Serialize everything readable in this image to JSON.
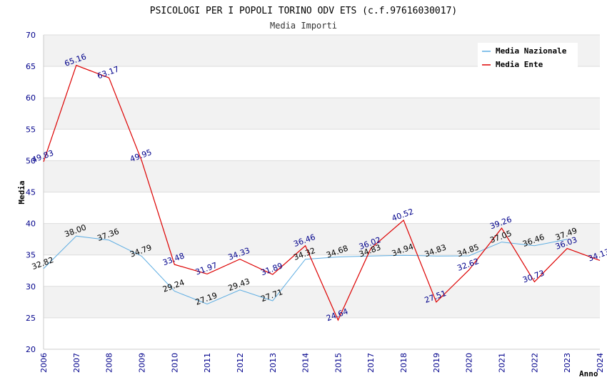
{
  "chart_data": {
    "type": "line",
    "title": "PSICOLOGI PER I POPOLI TORINO ODV ETS (c.f.97616030017)",
    "subtitle": "Media Importi",
    "ylabel": "Media",
    "xlabel": "Anno",
    "ylim": [
      20,
      70
    ],
    "yticks": [
      "20",
      "25",
      "30",
      "35",
      "40",
      "45",
      "50",
      "55",
      "60",
      "65",
      "70"
    ],
    "categories": [
      "2006",
      "2007",
      "2008",
      "2009",
      "2010",
      "2011",
      "2012",
      "2013",
      "2014",
      "2015",
      "2017",
      "2018",
      "2019",
      "2020",
      "2021",
      "2022",
      "2023",
      "2024"
    ],
    "legend_position": "top-right",
    "grid": true,
    "series": [
      {
        "name": "Media Nazionale",
        "color": "#5dade2",
        "values": [
          32.82,
          38.0,
          37.36,
          34.79,
          29.24,
          27.19,
          29.43,
          27.71,
          34.32,
          34.68,
          34.83,
          34.94,
          34.83,
          34.85,
          37.05,
          36.46,
          37.49,
          null
        ],
        "labels": [
          "32.82",
          "38.00",
          "37.36",
          "34.79",
          "29.24",
          "27.19",
          "29.43",
          "27.71",
          "34.32",
          "34.68",
          "34.83",
          "34.94",
          "34.83",
          "34.85",
          "37.05",
          "36.46",
          "37.49",
          ""
        ]
      },
      {
        "name": "Media Ente",
        "color": "#dd0000",
        "values": [
          49.83,
          65.16,
          63.17,
          49.95,
          33.48,
          31.97,
          34.33,
          31.89,
          36.46,
          24.64,
          36.02,
          40.52,
          27.51,
          32.62,
          39.26,
          30.73,
          36.03,
          34.13
        ],
        "labels": [
          "49.83",
          "65.16",
          "63.17",
          "49.95",
          "33.48",
          "31.97",
          "34.33",
          "31.89",
          "36.46",
          "24.64",
          "36.02",
          "40.52",
          "27.51",
          "32.62",
          "39.26",
          "30.73",
          "36.03",
          "34.13"
        ]
      }
    ]
  }
}
